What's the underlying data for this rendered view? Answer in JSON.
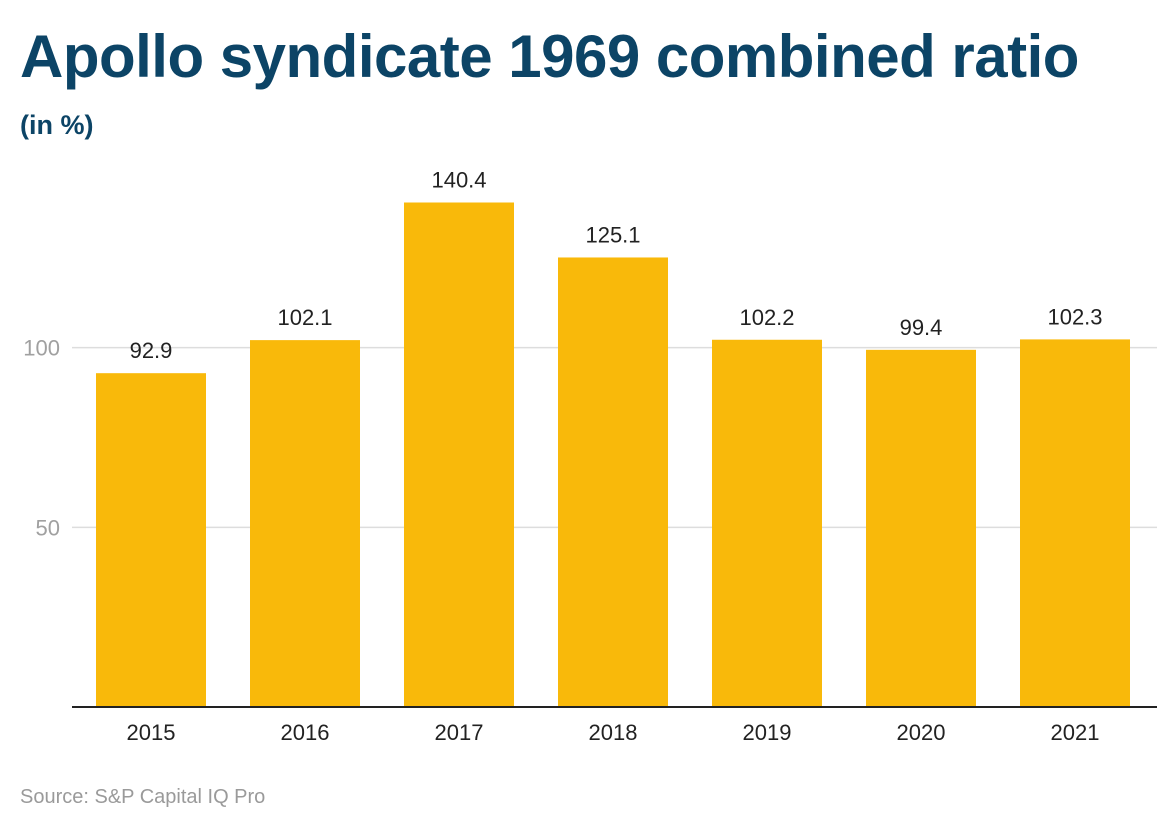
{
  "header": {
    "title": "Apollo syndicate 1969 combined ratio",
    "subtitle": "(in %)"
  },
  "footer": {
    "source": "Source: S&P Capital IQ Pro"
  },
  "chart_data": {
    "type": "bar",
    "categories": [
      "2015",
      "2016",
      "2017",
      "2018",
      "2019",
      "2020",
      "2021"
    ],
    "values": [
      92.9,
      102.1,
      140.4,
      125.1,
      102.2,
      99.4,
      102.3
    ],
    "value_labels": [
      "92.9",
      "102.1",
      "140.4",
      "125.1",
      "102.2",
      "99.4",
      "102.3"
    ],
    "y_ticks": [
      50,
      100
    ],
    "y_tick_labels": [
      "50",
      "100"
    ],
    "ylim": [
      0,
      150
    ],
    "grid": true,
    "legend": "none",
    "colors": {
      "bar": "#f9b90a",
      "grid": "#dddddd",
      "axis": "#222222",
      "tick_label": "#a0a0a0",
      "value_label": "#222222"
    }
  }
}
